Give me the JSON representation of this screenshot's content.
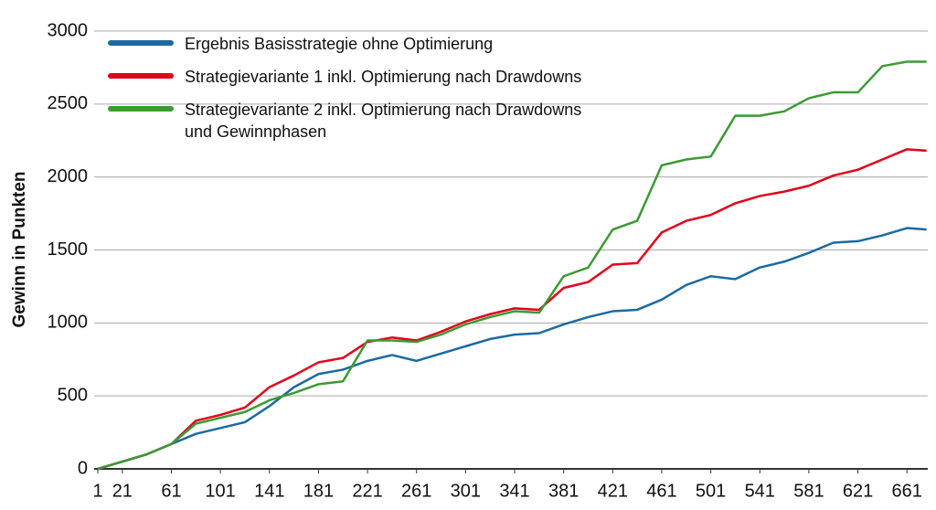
{
  "chart_data": {
    "type": "line",
    "ylabel": "Gewinn in Punkten",
    "x": [
      1,
      21,
      41,
      61,
      81,
      101,
      121,
      141,
      161,
      181,
      201,
      221,
      241,
      261,
      281,
      301,
      321,
      341,
      361,
      381,
      401,
      421,
      441,
      461,
      481,
      501,
      521,
      541,
      561,
      581,
      601,
      621,
      641,
      661,
      677
    ],
    "series": [
      {
        "name": "Ergebnis Basisstrategie ohne Optimierung",
        "color": "#1b6aa1",
        "values": [
          0,
          50,
          100,
          170,
          240,
          280,
          320,
          430,
          560,
          650,
          680,
          740,
          780,
          740,
          790,
          840,
          890,
          920,
          930,
          990,
          1040,
          1080,
          1090,
          1160,
          1260,
          1320,
          1300,
          1380,
          1420,
          1480,
          1550,
          1560,
          1600,
          1650,
          1640
        ]
      },
      {
        "name": "Strategievariante 1 inkl. Optimierung nach Drawdowns",
        "color": "#e2001a",
        "values": [
          0,
          50,
          100,
          170,
          330,
          370,
          420,
          560,
          640,
          730,
          760,
          870,
          900,
          880,
          940,
          1010,
          1060,
          1100,
          1090,
          1240,
          1280,
          1400,
          1410,
          1620,
          1700,
          1740,
          1820,
          1870,
          1900,
          1940,
          2010,
          2050,
          2120,
          2190,
          2180
        ]
      },
      {
        "name": "Strategievariante 2 inkl. Optimierung nach Drawdowns\nund Gewinnphasen",
        "color": "#3c9a35",
        "values": [
          0,
          50,
          100,
          170,
          310,
          350,
          390,
          470,
          520,
          580,
          600,
          880,
          880,
          870,
          920,
          990,
          1040,
          1080,
          1070,
          1320,
          1380,
          1640,
          1700,
          2080,
          2120,
          2140,
          2420,
          2420,
          2450,
          2540,
          2580,
          2580,
          2760,
          2790,
          2790
        ]
      }
    ],
    "xlim": [
      1,
      678
    ],
    "xticks": [
      1,
      21,
      61,
      101,
      141,
      181,
      221,
      261,
      301,
      341,
      381,
      421,
      461,
      501,
      541,
      581,
      621,
      661
    ],
    "ylim": [
      0,
      3000
    ],
    "yticks": [
      0,
      500,
      1000,
      1500,
      2000,
      2500,
      3000
    ],
    "grid": true,
    "legend": "top-left"
  }
}
